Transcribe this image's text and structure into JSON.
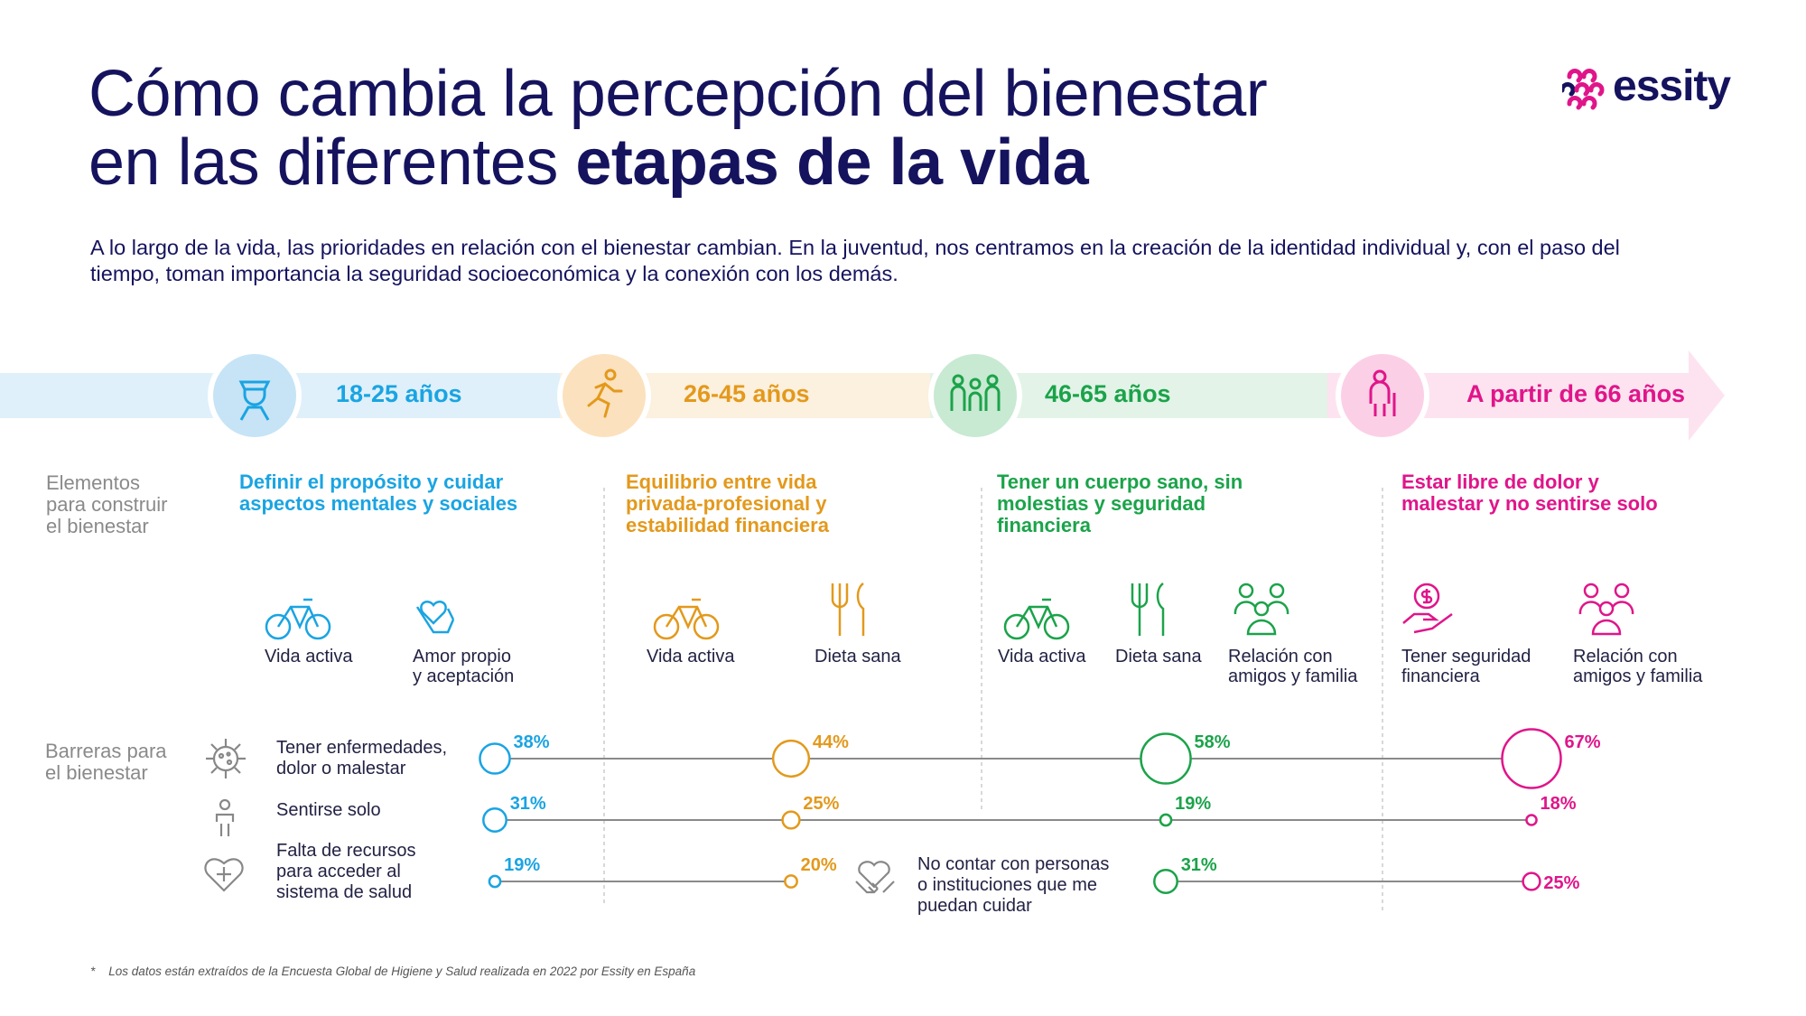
{
  "title": {
    "line1": "Cómo cambia la percepción del bienestar",
    "line2_regular": "en las diferentes ",
    "line2_bold": "etapas de la vida"
  },
  "intro": "A lo largo de la vida, las prioridades en relación con el bienestar cambian. En la juventud, nos centramos en la creación de la identidad individual y, con el paso del tiempo, toman importancia la seguridad socioeconómica y la conexión con los demás.",
  "logo": {
    "text": "essity",
    "icon": "essity-logo-icon"
  },
  "colors": {
    "blue": "#1aa4e2",
    "orange": "#e3991c",
    "green": "#1ba34a",
    "pink": "#e0158a",
    "navy": "#15135e"
  },
  "stages": [
    {
      "label": "18-25 años",
      "icon": "student-icon",
      "color": "#1aa4e2"
    },
    {
      "label": "26-45 años",
      "icon": "runner-icon",
      "color": "#e3991c"
    },
    {
      "label": "46-65 años",
      "icon": "family-icon",
      "color": "#1ba34a"
    },
    {
      "label": "A partir de 66 años",
      "icon": "elderly-icon",
      "color": "#e0158a"
    }
  ],
  "sections": {
    "elements_label": [
      "Elementos",
      "para construir",
      "el bienestar"
    ],
    "barriers_label": [
      "Barreras para",
      "el bienestar"
    ]
  },
  "elements": [
    {
      "lines": [
        "Definir el propósito y cuidar",
        "aspectos mentales y sociales"
      ],
      "items": [
        {
          "icon": "bicycle-icon",
          "lines": [
            "Vida activa"
          ]
        },
        {
          "icon": "heart-hands-icon",
          "lines": [
            "Amor propio",
            "y aceptación"
          ]
        }
      ]
    },
    {
      "lines": [
        "Equilibrio entre vida",
        "privada-profesional y",
        "estabilidad financiera"
      ],
      "items": [
        {
          "icon": "bicycle-icon",
          "lines": [
            "Vida activa"
          ]
        },
        {
          "icon": "cutlery-icon",
          "lines": [
            "Dieta sana"
          ]
        }
      ]
    },
    {
      "lines": [
        "Tener un cuerpo sano, sin",
        "molestias y seguridad",
        "financiera"
      ],
      "items": [
        {
          "icon": "bicycle-icon",
          "lines": [
            "Vida activa"
          ]
        },
        {
          "icon": "cutlery-icon",
          "lines": [
            "Dieta sana"
          ]
        },
        {
          "icon": "people-icon",
          "lines": [
            "Relación con",
            "amigos y familia"
          ]
        }
      ]
    },
    {
      "lines": [
        "Estar libre de dolor y",
        "malestar y no sentirse solo"
      ],
      "items": [
        {
          "icon": "money-hand-icon",
          "lines": [
            "Tener seguridad",
            "financiera"
          ]
        },
        {
          "icon": "people-icon",
          "lines": [
            "Relación con",
            "amigos y familia"
          ]
        }
      ]
    }
  ],
  "chart_data": {
    "type": "dot-line",
    "categories": [
      "18-25 años",
      "26-45 años",
      "46-65 años",
      "A partir de 66 años"
    ],
    "series": [
      {
        "name": "Tener enfermedades, dolor o malestar",
        "values": [
          38,
          44,
          58,
          67
        ]
      },
      {
        "name": "Sentirse solo",
        "values": [
          31,
          25,
          19,
          18
        ]
      },
      {
        "name": "Falta de recursos para acceder al sistema de salud",
        "values": [
          19,
          20,
          null,
          null
        ]
      },
      {
        "name": "No contar con personas o instituciones que me puedan cuidar",
        "values": [
          null,
          null,
          31,
          25
        ]
      }
    ],
    "unit": "%"
  },
  "barriers": [
    {
      "icon": "virus-icon",
      "lines": [
        "Tener enfermedades,",
        "dolor o malestar"
      ],
      "labels": [
        "38%",
        "44%",
        "58%",
        "67%"
      ]
    },
    {
      "icon": "lonely-person-icon",
      "lines": [
        "Sentirse solo"
      ],
      "labels": [
        "31%",
        "25%",
        "19%",
        "18%"
      ]
    },
    {
      "icon": "heart-plus-icon",
      "lines": [
        "Falta de recursos",
        "para acceder al",
        "sistema de salud"
      ],
      "labels": [
        "19%",
        "20%"
      ]
    },
    {
      "icon": "handshake-heart-icon",
      "lines": [
        "No contar con personas",
        "o instituciones que me",
        "puedan cuidar"
      ],
      "labels": [
        "31%",
        "25%"
      ]
    }
  ],
  "footnote": {
    "mark": "*",
    "text": "Los datos están extraídos de la Encuesta Global de Higiene y Salud realizada en 2022 por Essity en España"
  }
}
